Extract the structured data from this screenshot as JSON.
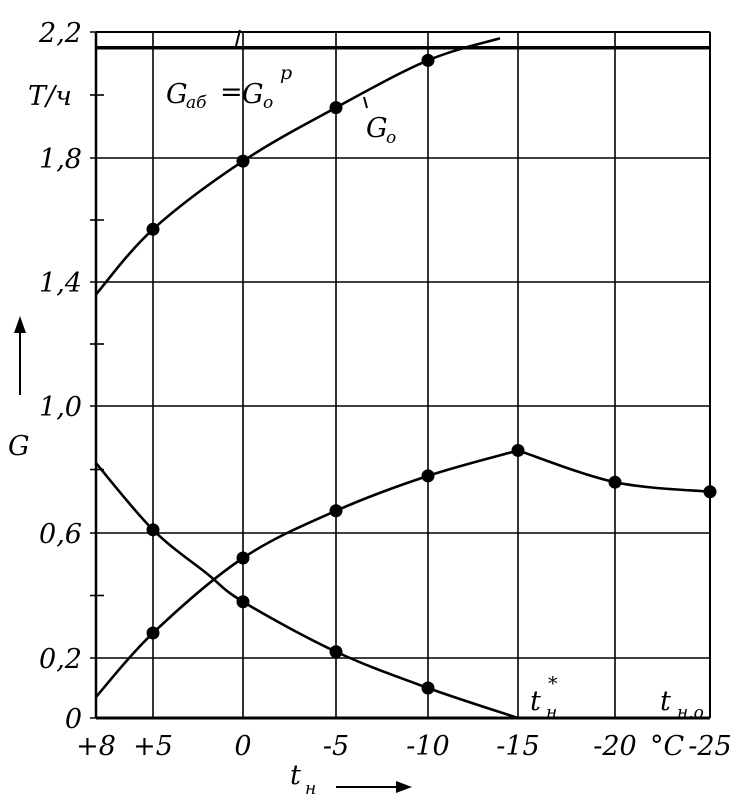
{
  "chart_data": {
    "type": "line",
    "x_ticks": [
      "+8",
      "+5",
      "0",
      "-5",
      "-10",
      "-15",
      "-20",
      "-25"
    ],
    "x_tick_values": [
      8,
      5,
      0,
      -5,
      -10,
      -15,
      -20,
      -25
    ],
    "x_unit": "°C",
    "y_ticks": [
      "0",
      "0,2",
      "0,6",
      "1,0",
      "1,4",
      "1,8",
      "2,2"
    ],
    "y_tick_values": [
      0,
      0.2,
      0.6,
      1.0,
      1.4,
      1.8,
      2.2
    ],
    "y_unit": "Т/ч",
    "xlim": [
      8,
      -25
    ],
    "ylim": [
      0,
      2.2
    ],
    "grid": true,
    "xlabel": {
      "main": "t",
      "sub": "н"
    },
    "ylabel": "G",
    "series": [
      {
        "name": "G₀",
        "label": {
          "main": "G",
          "sub": "o"
        },
        "points": [
          [
            8,
            1.36
          ],
          [
            5,
            1.57
          ],
          [
            0,
            1.79
          ],
          [
            -5,
            1.96
          ],
          [
            -10,
            2.11
          ],
          [
            -14,
            2.18
          ]
        ],
        "markers": [
          [
            5,
            1.57
          ],
          [
            0,
            1.79
          ],
          [
            -5,
            1.96
          ],
          [
            -10,
            2.11
          ]
        ]
      },
      {
        "name": "Gаб = G₀ᵖ",
        "label": {
          "main": "G",
          "sub": "аб",
          "eq": "=",
          "main2": "G",
          "sub2": "o",
          "sup2": "р"
        },
        "points": [
          [
            8,
            2.15
          ],
          [
            -25,
            2.15
          ]
        ],
        "markers": []
      },
      {
        "name": "rising curve",
        "points": [
          [
            8,
            0.07
          ],
          [
            5,
            0.28
          ],
          [
            0,
            0.52
          ],
          [
            -5,
            0.67
          ],
          [
            -10,
            0.78
          ],
          [
            -15,
            0.86
          ],
          [
            -20,
            0.76
          ],
          [
            -25,
            0.73
          ]
        ],
        "markers": [
          [
            5,
            0.28
          ],
          [
            0,
            0.52
          ],
          [
            -5,
            0.67
          ],
          [
            -10,
            0.78
          ],
          [
            -15,
            0.86
          ],
          [
            -20,
            0.76
          ],
          [
            -25,
            0.73
          ]
        ]
      },
      {
        "name": "falling curve",
        "points": [
          [
            8,
            0.82
          ],
          [
            5,
            0.61
          ],
          [
            2,
            0.47
          ],
          [
            0,
            0.38
          ],
          [
            -5,
            0.22
          ],
          [
            -10,
            0.1
          ],
          [
            -15,
            0.0
          ]
        ],
        "markers": [
          [
            5,
            0.61
          ],
          [
            0,
            0.38
          ],
          [
            -5,
            0.22
          ],
          [
            -10,
            0.1
          ]
        ]
      }
    ],
    "annotations": [
      {
        "main": "t",
        "sub": "н",
        "sup": "*",
        "x": -15,
        "y": 0.0
      },
      {
        "main": "t",
        "sub": "н.о",
        "x": -25,
        "y": 0.0
      }
    ]
  }
}
